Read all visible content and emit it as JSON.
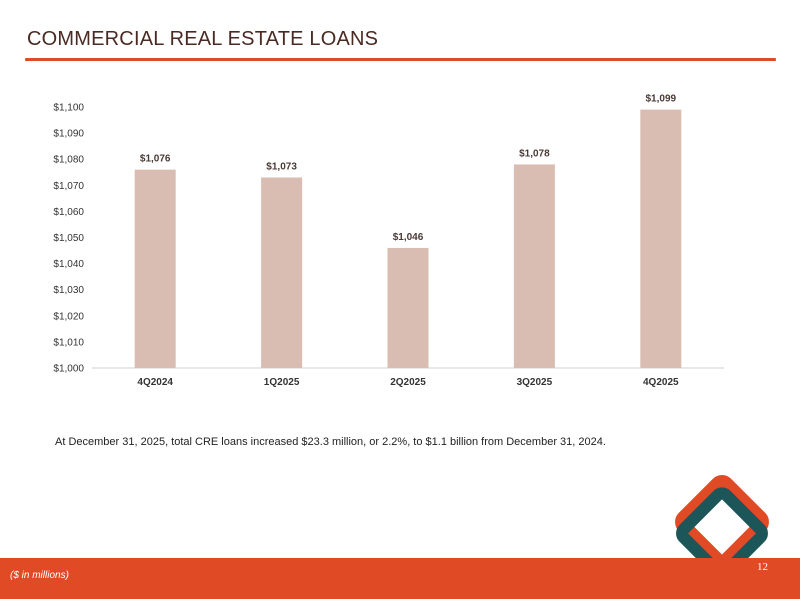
{
  "header": {
    "title": "COMMERCIAL REAL ESTATE LOANS"
  },
  "chart_data": {
    "type": "bar",
    "categories": [
      "4Q2024",
      "1Q2025",
      "2Q2025",
      "3Q2025",
      "4Q2025"
    ],
    "values": [
      1076,
      1073,
      1046,
      1078,
      1099
    ],
    "value_labels": [
      "$1,076",
      "$1,073",
      "$1,046",
      "$1,078",
      "$1,099"
    ],
    "ylim": [
      1000,
      1100
    ],
    "yticks": [
      1000,
      1010,
      1020,
      1030,
      1040,
      1050,
      1060,
      1070,
      1080,
      1090,
      1100
    ],
    "ytick_labels": [
      "$1,000",
      "$1,010",
      "$1,020",
      "$1,030",
      "$1,040",
      "$1,050",
      "$1,060",
      "$1,070",
      "$1,080",
      "$1,090",
      "$1,100"
    ],
    "bar_color": "#d9bdb3",
    "grid": false,
    "legend": "none"
  },
  "caption": "At December 31, 2025, total CRE loans increased $23.3 million, or 2.2%, to $1.1 billion from December 31, 2024.",
  "footer": {
    "note": "($ in millions)",
    "page": "12"
  },
  "colors": {
    "accent": "#e04b25",
    "logo_teal": "#1d5659",
    "logo_orange": "#e04b25"
  }
}
